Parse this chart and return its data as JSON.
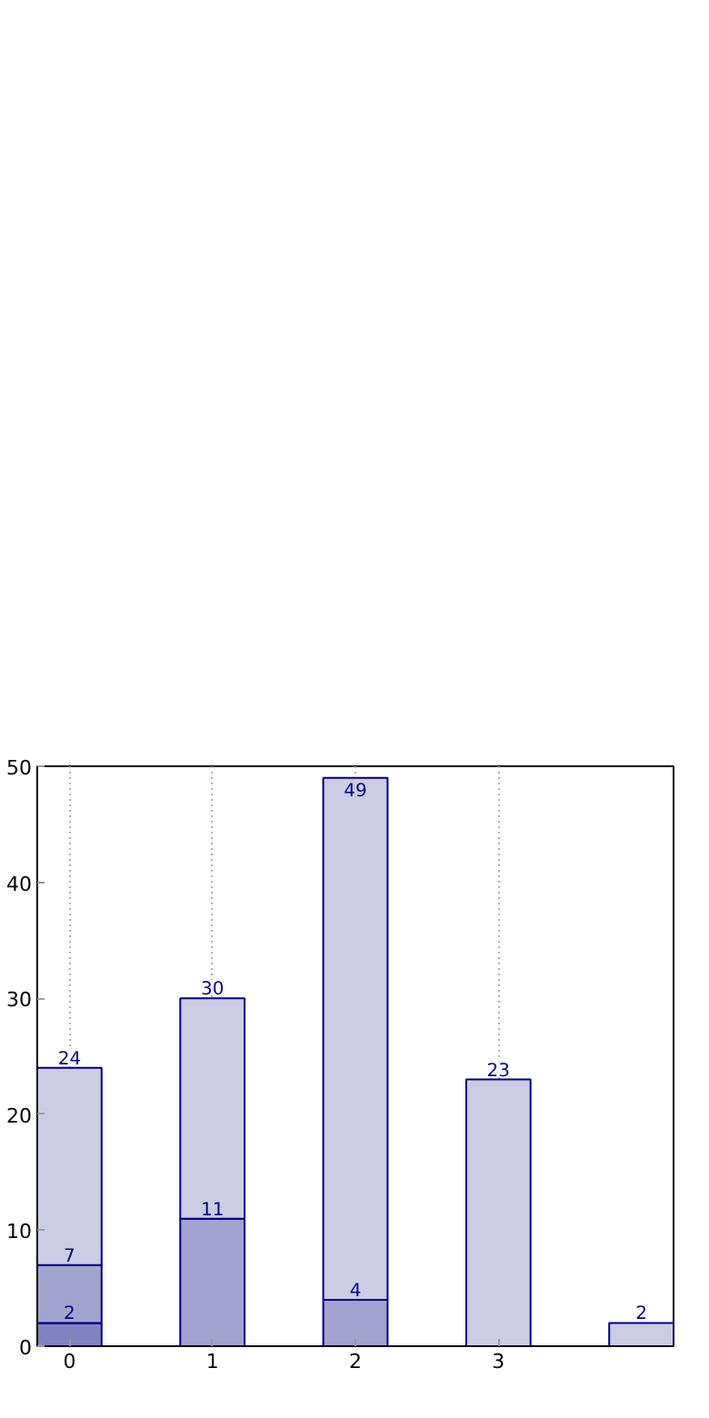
{
  "chart_data": {
    "type": "bar",
    "stacked": true,
    "x": [
      0,
      1,
      2,
      3,
      4
    ],
    "series": [
      {
        "color": "#8383c1",
        "values": [
          2,
          null,
          null,
          null,
          null
        ],
        "value_labels": [
          "2",
          null,
          null,
          null,
          null
        ]
      },
      {
        "color": "#a3a3d0",
        "values": [
          5,
          11,
          4,
          null,
          null
        ],
        "value_labels": [
          null,
          "11",
          "4",
          null,
          null
        ]
      },
      {
        "color": "#cccce5",
        "values": [
          17,
          19,
          45,
          23,
          2
        ]
      }
    ],
    "totals": [
      "24",
      "30",
      "49",
      "23",
      "2"
    ],
    "annotations": [
      {
        "text": "7",
        "x": 0,
        "y": 7
      }
    ],
    "xlim": [
      -0.225,
      4.225
    ],
    "ylim": [
      0,
      50
    ],
    "xticks": [
      0,
      1,
      2,
      3
    ],
    "yticks": [
      0,
      10,
      20,
      30,
      40,
      50
    ],
    "grid": "x"
  }
}
